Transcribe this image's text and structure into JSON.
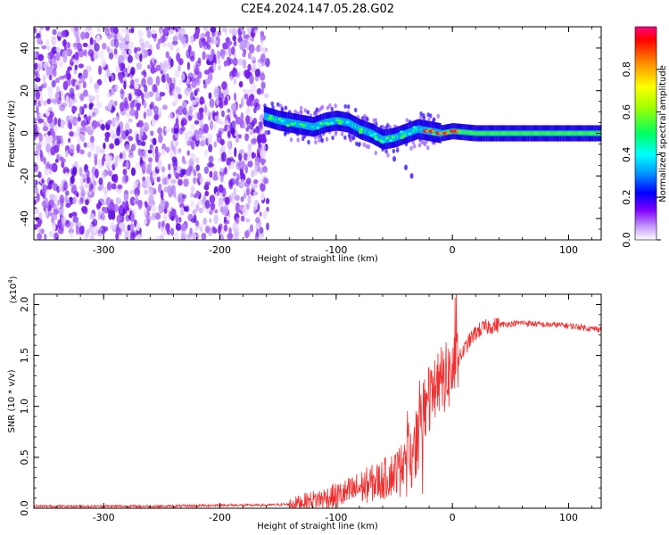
{
  "figure": {
    "title": "C2E4.2024.147.05.28.G02"
  },
  "chart_data": [
    {
      "type": "heatmap",
      "xlabel": "Height of straight line (km)",
      "ylabel": "Frequency (Hz)",
      "xlim": [
        -360,
        128
      ],
      "ylim": [
        -50,
        50
      ],
      "x_ticks": [
        -300,
        -200,
        -100,
        0,
        100
      ],
      "y_ticks": [
        -40,
        -20,
        0,
        20,
        40
      ],
      "x_tick_labels": [
        "-300",
        "-200",
        "-100",
        "0",
        "100"
      ],
      "y_tick_labels": [
        "-40",
        "-20",
        "0",
        "20",
        "40"
      ],
      "noise_region_x": [
        -360,
        -165
      ],
      "signal_track": {
        "x": [
          -162,
          -150,
          -140,
          -130,
          -120,
          -110,
          -100,
          -90,
          -80,
          -70,
          -60,
          -50,
          -40,
          -30,
          -20,
          -10,
          0,
          20,
          40,
          60,
          80,
          100,
          128
        ],
        "freq": [
          8,
          6,
          5,
          4,
          3,
          5,
          6,
          5,
          2,
          0,
          -3,
          -2,
          0,
          2,
          1,
          0,
          1,
          0,
          0,
          0,
          0,
          0,
          0
        ]
      },
      "colorbar": {
        "label": "Normalized spectral amplitude",
        "range": [
          0,
          1
        ],
        "ticks": [
          0.0,
          0.2,
          0.4,
          0.6,
          0.8
        ],
        "tick_labels": [
          "0.0",
          "0.2",
          "0.4",
          "0.6",
          "0.8"
        ]
      }
    },
    {
      "type": "line",
      "xlabel": "Height of straight line (km)",
      "ylabel": "SNR (10 * v/v)",
      "y_multiplier": "(x10",
      "y_multiplier_exp": "4",
      "y_multiplier_close": ")",
      "xlim": [
        -360,
        128
      ],
      "ylim": [
        0,
        2.1
      ],
      "x_ticks": [
        -300,
        -200,
        -100,
        0,
        100
      ],
      "y_ticks": [
        0.0,
        0.5,
        1.0,
        1.5,
        2.0
      ],
      "x_tick_labels": [
        "-300",
        "-200",
        "-100",
        "0",
        "100"
      ],
      "y_tick_labels": [
        "0.0",
        "0.5",
        "1.0",
        "1.5",
        "2.0"
      ],
      "series": [
        {
          "color": "#f03030",
          "x": [
            -360,
            -320,
            -280,
            -240,
            -200,
            -160,
            -140,
            -120,
            -100,
            -90,
            -80,
            -70,
            -60,
            -50,
            -45,
            -40,
            -35,
            -30,
            -27,
            -24,
            -21,
            -18,
            -15,
            -12,
            -9,
            -6,
            -3,
            0,
            5,
            10,
            15,
            20,
            25,
            30,
            40,
            50,
            60,
            70,
            80,
            90,
            100,
            110,
            120,
            128
          ],
          "y": [
            0.02,
            0.02,
            0.02,
            0.02,
            0.03,
            0.03,
            0.04,
            0.08,
            0.12,
            0.15,
            0.2,
            0.24,
            0.28,
            0.35,
            0.4,
            0.45,
            0.55,
            0.65,
            0.8,
            0.95,
            1.0,
            1.15,
            1.2,
            1.25,
            1.25,
            1.28,
            1.3,
            1.35,
            1.45,
            1.55,
            1.65,
            1.72,
            1.76,
            1.78,
            1.8,
            1.81,
            1.82,
            1.81,
            1.8,
            1.8,
            1.79,
            1.78,
            1.76,
            1.76
          ]
        }
      ]
    }
  ]
}
